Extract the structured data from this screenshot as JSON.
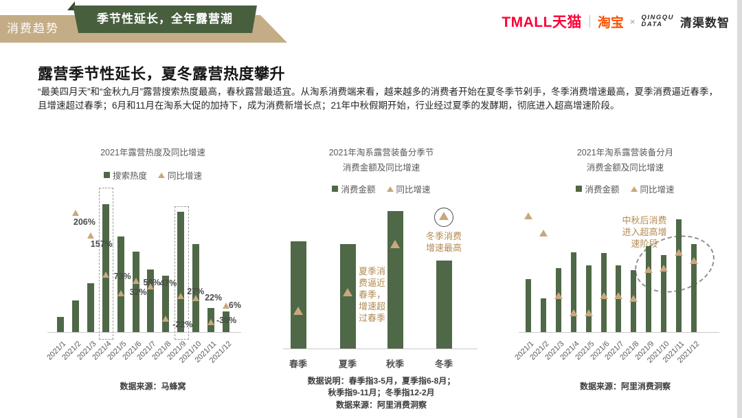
{
  "header": {
    "section_label": "消费趋势",
    "banner_title": "季节性延长，全年露营潮",
    "logos": {
      "tmall": "TMALL天猫",
      "divider": "|",
      "taobao": "淘宝",
      "cross": "×",
      "qingqu_mark_line1": "QINGQU",
      "qingqu_mark_line2": "DATA",
      "qingqu_name": "清渠数智"
    }
  },
  "intro": {
    "title": "露营季节性延长，夏冬露营热度攀升",
    "paragraph": "“最美四月天”和“金秋九月”露营搜索热度最高，春秋露营最适宜。从淘系消费端来看，越来越多的消费者开始在夏冬季节剁手，冬季消费增速最高，夏季消费逼近春季，且增速超过春季；6月和11月在淘系大促的加持下，成为消费新增长点；21年中秋假期开始，行业经过夏季的发酵期，彻底进入超高增速阶段。"
  },
  "colors": {
    "bar_green": "#4F6847",
    "marker_tan": "#C9A87E",
    "ribbon_tan": "#C4AD86",
    "banner_green": "#485F3E",
    "annotation_brown": "#B38B52",
    "tmall_red": "#FF0036",
    "taobao_orange": "#FF5000"
  },
  "chart_data": [
    {
      "type": "bar",
      "title": "2021年露营热度及同比增速",
      "legend": [
        "搜索热度",
        "同比增速"
      ],
      "legend_position": "top",
      "categories": [
        "2021/1",
        "2021/2",
        "2021/3",
        "2021/4",
        "2021/5",
        "2021/6",
        "2021/7",
        "2021/8",
        "2021/9",
        "2021/10",
        "2021/11",
        "2021/12"
      ],
      "series": [
        {
          "name": "搜索热度",
          "kind": "bar",
          "unit": "搜索热度指数（未标注数值，相对高度，最高=100）",
          "values_relative": [
            12,
            25,
            38,
            100,
            75,
            63,
            49,
            44,
            94,
            69,
            19,
            16
          ]
        },
        {
          "name": "同比增速",
          "kind": "marker",
          "unit": "%",
          "values": [
            null,
            206,
            157,
            73,
            32,
            59,
            47,
            -22,
            27,
            22,
            -30,
            6
          ]
        }
      ],
      "data_labels": [
        "",
        "206%",
        "157%",
        "73%",
        "32%",
        "59%",
        "47%",
        "-22%",
        "27%",
        "22%",
        "-30%",
        "6%"
      ],
      "highlighted_categories": [
        "2021/4",
        "2021/9"
      ],
      "grid": false,
      "source": "数据来源：马蜂窝"
    },
    {
      "type": "bar",
      "title_lines": [
        "2021年淘系露营装备分季节",
        "消费金额及同比增速"
      ],
      "legend": [
        "消费金额",
        "同比增速"
      ],
      "legend_position": "top",
      "categories": [
        "春季",
        "夏季",
        "秋季",
        "冬季"
      ],
      "series": [
        {
          "name": "消费金额",
          "kind": "bar",
          "unit": "消费金额（未标注数值，相对高度，最高=100）",
          "values_relative": [
            78,
            76,
            100,
            64
          ]
        },
        {
          "name": "同比增速",
          "kind": "marker",
          "unit": "相对标记高度（未标注数值，0-100）",
          "values_relative": [
            27,
            40,
            74,
            94
          ]
        }
      ],
      "annotations": [
        {
          "text": "夏季消费逼近春季，增速超过春季",
          "target": "夏季"
        },
        {
          "text": "冬季消费增速最高",
          "target": "冬季"
        }
      ],
      "circled_markers": [
        "夏季",
        "冬季"
      ],
      "grid": false,
      "footnotes": [
        "数据说明：春季指3-5月，夏季指6-8月；",
        "秋季指9-11月；冬季指12-2月",
        "数据来源：阿里消费洞察"
      ]
    },
    {
      "type": "bar",
      "title_lines": [
        "2021年淘系露营装备分月",
        "消费金额及同比增速"
      ],
      "legend": [
        "消费金额",
        "同比增速"
      ],
      "legend_position": "top",
      "categories": [
        "2021/1",
        "2021/2",
        "2021/3",
        "2021/4",
        "2021/5",
        "2021/6",
        "2021/7",
        "2021/8",
        "2021/9",
        "2021/10",
        "2021/11",
        "2021/12"
      ],
      "series": [
        {
          "name": "消费金额",
          "kind": "bar",
          "unit": "消费金额（未标注数值，相对高度，最高=100）",
          "values_relative": [
            47,
            30,
            57,
            71,
            59,
            70,
            59,
            55,
            76,
            68,
            100,
            78
          ]
        },
        {
          "name": "同比增速",
          "kind": "marker",
          "unit": "相对标记高度（未标注数值，0-100）",
          "values_relative": [
            89,
            76,
            28,
            15,
            15,
            28,
            28,
            26,
            48,
            49,
            61,
            55
          ]
        }
      ],
      "annotations": [
        {
          "text": "中秋后消费进入超高增速阶段",
          "target": "2021/9至2021/12"
        }
      ],
      "highlight_ellipse": "2021/9至2021/12的同比增速标记（虚线椭圆圈出）",
      "grid": false,
      "source": "数据来源：阿里消费洞察"
    }
  ]
}
